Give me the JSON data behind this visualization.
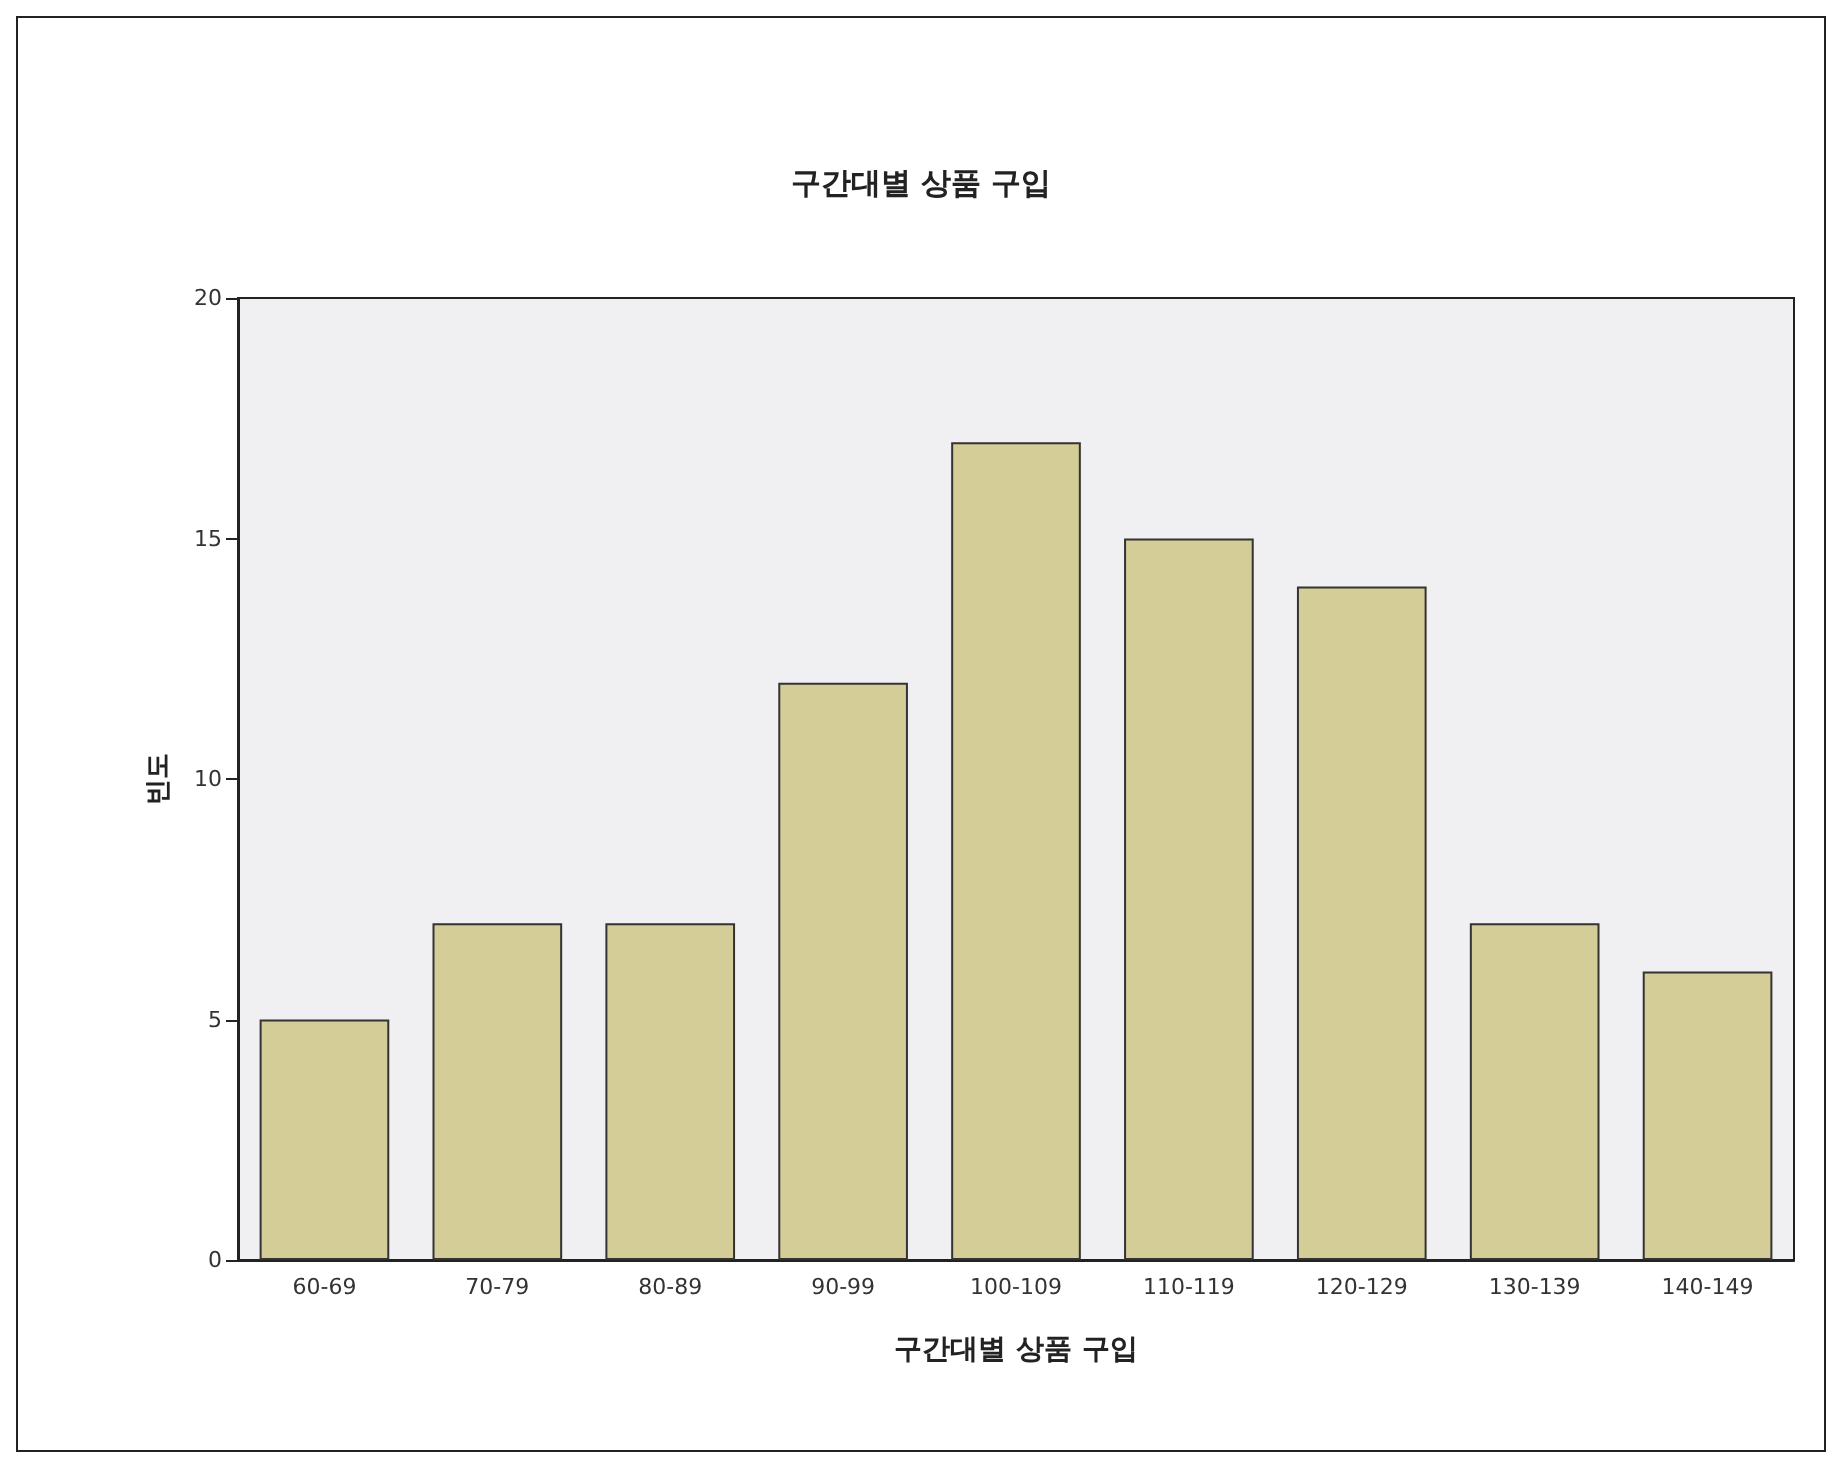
{
  "chart_data": {
    "type": "bar",
    "title": "구간대별 상품 구입",
    "xlabel": "구간대별 상품 구입",
    "ylabel": "빈도",
    "categories": [
      "60-69",
      "70-79",
      "80-89",
      "90-99",
      "100-109",
      "110-119",
      "120-129",
      "130-139",
      "140-149"
    ],
    "values": [
      5,
      7,
      7,
      12,
      17,
      15,
      14,
      7,
      6
    ],
    "color": "#d4cd98",
    "ylim": [
      0,
      20
    ],
    "yticks": [
      0,
      5,
      10,
      15,
      20
    ],
    "grid": false
  }
}
